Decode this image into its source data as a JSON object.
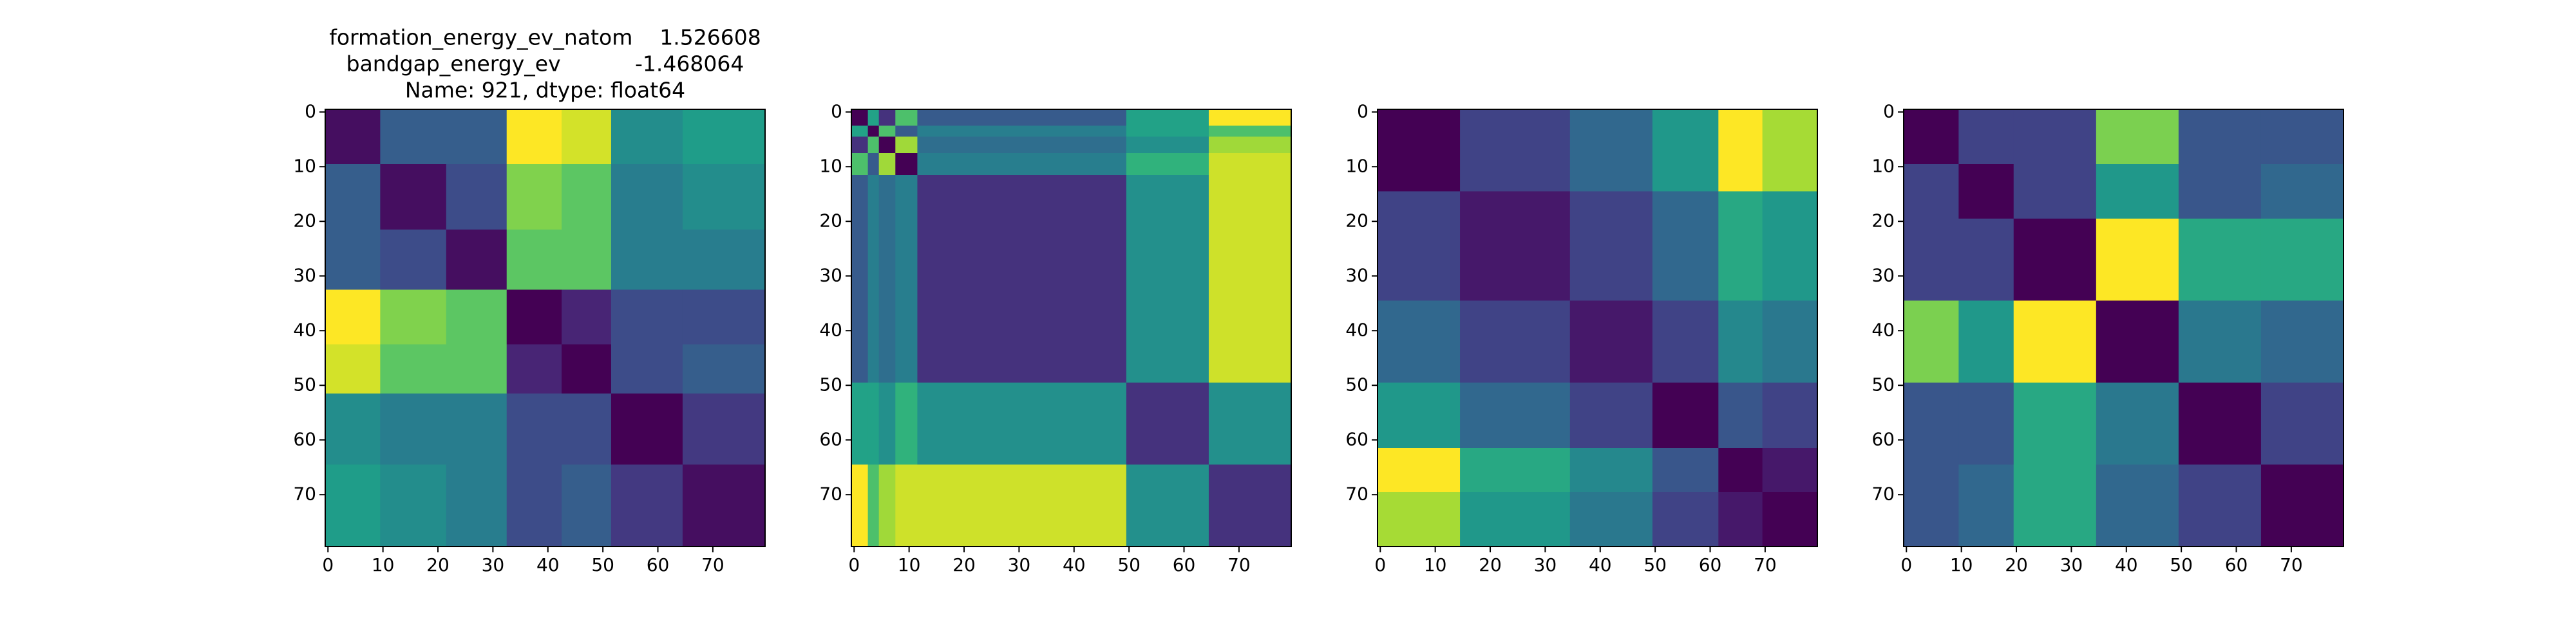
{
  "chart_data": [
    {
      "type": "heatmap",
      "colormap": "viridis",
      "title": [
        "formation_energy_ev_natom    1.526608",
        "bandgap_energy_ev           -1.468064",
        "Name: 921, dtype: float64"
      ],
      "xlim": [
        -0.5,
        79.5
      ],
      "ylim": [
        79.5,
        -0.5
      ],
      "xticks": [
        0,
        10,
        20,
        30,
        40,
        50,
        60,
        70
      ],
      "yticks": [
        0,
        10,
        20,
        30,
        40,
        50,
        60,
        70
      ],
      "x_edges": [
        -0.5,
        9.5,
        21.5,
        32.5,
        42.5,
        51.5,
        64.5,
        79.5
      ],
      "y_edges": [
        -0.5,
        9.5,
        21.5,
        32.5,
        42.5,
        51.5,
        64.5,
        79.5
      ],
      "z": [
        [
          0.15,
          0.35,
          0.35,
          0.9,
          0.85,
          0.5,
          0.55
        ],
        [
          0.35,
          0.15,
          0.3,
          0.75,
          0.7,
          0.45,
          0.5
        ],
        [
          0.35,
          0.3,
          0.15,
          0.7,
          0.7,
          0.45,
          0.45
        ],
        [
          0.9,
          0.75,
          0.7,
          0.12,
          0.2,
          0.3,
          0.3
        ],
        [
          0.85,
          0.7,
          0.7,
          0.2,
          0.12,
          0.3,
          0.35
        ],
        [
          0.5,
          0.45,
          0.45,
          0.3,
          0.3,
          0.12,
          0.25
        ],
        [
          0.55,
          0.5,
          0.45,
          0.3,
          0.35,
          0.25,
          0.15
        ]
      ]
    },
    {
      "type": "heatmap",
      "colormap": "viridis",
      "xlim": [
        -0.5,
        79.5
      ],
      "ylim": [
        79.5,
        -0.5
      ],
      "xticks": [
        0,
        10,
        20,
        30,
        40,
        50,
        60,
        70
      ],
      "yticks": [
        0,
        10,
        20,
        30,
        40,
        50,
        60,
        70
      ],
      "x_edges": [
        -0.5,
        2.5,
        4.5,
        7.5,
        11.5,
        49.5,
        64.5,
        79.5
      ],
      "y_edges": [
        -0.5,
        2.5,
        4.5,
        7.5,
        11.5,
        49.5,
        64.5,
        79.5
      ],
      "z": [
        [
          0.1,
          0.5,
          0.2,
          0.6,
          0.3,
          0.5,
          0.8
        ],
        [
          0.5,
          0.1,
          0.6,
          0.3,
          0.4,
          0.5,
          0.6
        ],
        [
          0.2,
          0.6,
          0.1,
          0.7,
          0.35,
          0.45,
          0.7
        ],
        [
          0.6,
          0.3,
          0.7,
          0.1,
          0.4,
          0.55,
          0.75
        ],
        [
          0.3,
          0.4,
          0.35,
          0.4,
          0.2,
          0.45,
          0.75
        ],
        [
          0.5,
          0.5,
          0.45,
          0.55,
          0.45,
          0.2,
          0.45
        ],
        [
          0.8,
          0.6,
          0.7,
          0.75,
          0.75,
          0.45,
          0.2
        ]
      ]
    },
    {
      "type": "heatmap",
      "colormap": "viridis",
      "xlim": [
        -0.5,
        79.5
      ],
      "ylim": [
        79.5,
        -0.5
      ],
      "xticks": [
        0,
        10,
        20,
        30,
        40,
        50,
        60,
        70
      ],
      "yticks": [
        0,
        10,
        20,
        30,
        40,
        50,
        60,
        70
      ],
      "x_edges": [
        -0.5,
        14.5,
        34.5,
        49.5,
        61.5,
        69.5,
        79.5
      ],
      "y_edges": [
        -0.5,
        14.5,
        34.5,
        49.5,
        61.5,
        69.5,
        79.5
      ],
      "z": [
        [
          0.15,
          0.3,
          0.4,
          0.55,
          0.9,
          0.8
        ],
        [
          0.3,
          0.2,
          0.3,
          0.4,
          0.6,
          0.55
        ],
        [
          0.4,
          0.3,
          0.2,
          0.3,
          0.5,
          0.45
        ],
        [
          0.55,
          0.4,
          0.3,
          0.15,
          0.35,
          0.3
        ],
        [
          0.9,
          0.6,
          0.5,
          0.35,
          0.15,
          0.2
        ],
        [
          0.8,
          0.55,
          0.45,
          0.3,
          0.2,
          0.15
        ]
      ]
    },
    {
      "type": "heatmap",
      "colormap": "viridis",
      "xlim": [
        -0.5,
        79.5
      ],
      "ylim": [
        79.5,
        -0.5
      ],
      "xticks": [
        0,
        10,
        20,
        30,
        40,
        50,
        60,
        70
      ],
      "yticks": [
        0,
        10,
        20,
        30,
        40,
        50,
        60,
        70
      ],
      "x_edges": [
        -0.5,
        9.5,
        19.5,
        34.5,
        49.5,
        64.5,
        79.5
      ],
      "y_edges": [
        -0.5,
        9.5,
        19.5,
        34.5,
        49.5,
        64.5,
        79.5
      ],
      "z": [
        [
          0.15,
          0.3,
          0.3,
          0.75,
          0.35,
          0.35
        ],
        [
          0.3,
          0.15,
          0.3,
          0.55,
          0.35,
          0.4
        ],
        [
          0.3,
          0.3,
          0.15,
          0.9,
          0.6,
          0.6
        ],
        [
          0.75,
          0.55,
          0.9,
          0.15,
          0.45,
          0.4
        ],
        [
          0.35,
          0.35,
          0.6,
          0.45,
          0.15,
          0.3
        ],
        [
          0.35,
          0.4,
          0.6,
          0.4,
          0.3,
          0.15
        ]
      ]
    }
  ]
}
